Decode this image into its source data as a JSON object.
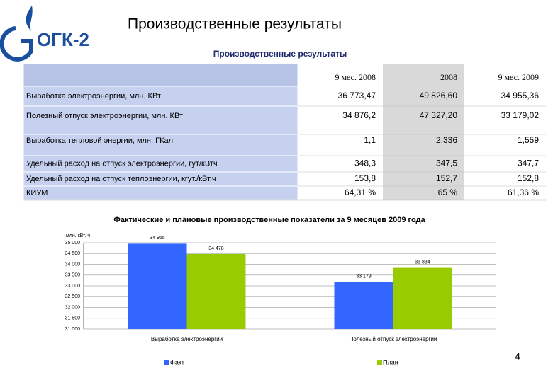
{
  "header": {
    "title": "Производственные результаты",
    "logo": "ОГК-2",
    "subtitle": "Производственные результаты"
  },
  "table": {
    "columns": [
      "9 мес. 2008",
      "2008",
      "9 мес. 2009"
    ],
    "rows": [
      [
        "Выработка электроэнергии, млн. КВт",
        "36 773,47",
        "49 826,60",
        "34 955,36"
      ],
      [
        "Полезный отпуск электроэнергии, млн. КВт",
        "34 876,2",
        "47 327,20",
        "33 179,02"
      ],
      [
        "Выработка тепловой энергии, млн. ГКал.",
        "1,1",
        "2,336",
        "1,559"
      ],
      [
        "Удельный расход на отпуск электроэнергии, гут/кВтч",
        "348,3",
        "347,5",
        "347,7"
      ],
      [
        "Удельный расход на отпуск теплоэнергии, кгут./кВт.ч",
        "153,8",
        "152,7",
        "152,8"
      ],
      [
        "КИУМ",
        "64,31 %",
        "65 %",
        "61,36 %"
      ]
    ]
  },
  "chart_data": {
    "type": "bar",
    "title": "Фактические и плановые производственные показатели за 9 месяцев 2009 года",
    "y_label": "млн. кВт. ч",
    "categories": [
      "Выработка электроэнергии",
      "Полезный отпуск электроэнергии"
    ],
    "series": [
      {
        "name": "Факт",
        "color": "#3366ff",
        "values": [
          34955,
          33179
        ],
        "value_labels": [
          "34 955",
          "33 179"
        ]
      },
      {
        "name": "План",
        "color": "#99cc00",
        "values": [
          34478,
          33834
        ],
        "value_labels": [
          "34 478",
          "33 834"
        ]
      }
    ],
    "ylim": [
      31000,
      35000
    ],
    "yticks": [
      {
        "value": 31000,
        "label": "31 000"
      },
      {
        "value": 31500,
        "label": "31 500"
      },
      {
        "value": 32000,
        "label": "32 000"
      },
      {
        "value": 32500,
        "label": "32 500"
      },
      {
        "value": 33000,
        "label": "33 000"
      },
      {
        "value": 33500,
        "label": "33 500"
      },
      {
        "value": 34000,
        "label": "34 000"
      },
      {
        "value": 34500,
        "label": "34 500"
      },
      {
        "value": 35000,
        "label": "35 000"
      }
    ],
    "grid": true,
    "legend": "bottom"
  },
  "page_number": "4"
}
